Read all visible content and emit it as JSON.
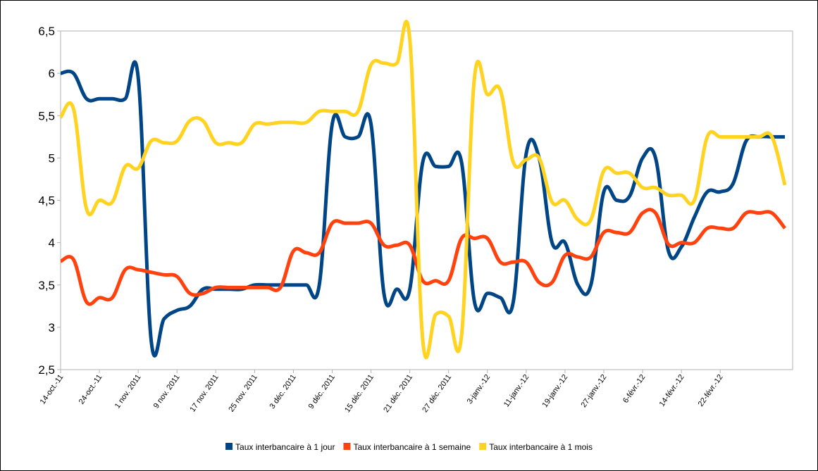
{
  "chart_data": {
    "type": "line",
    "categories": [
      "14-oct.-11",
      null,
      null,
      "24-oct.-11",
      null,
      null,
      "1 nov. 2011",
      null,
      null,
      "9 nov. 2011",
      null,
      null,
      "17 nov. 2011",
      null,
      null,
      "25 nov. 2011",
      null,
      null,
      "3 déc. 2011",
      null,
      null,
      "9 déc. 2011",
      null,
      null,
      "15 déc. 2011",
      null,
      null,
      "21 déc. 2011",
      null,
      null,
      "27 déc. 2011",
      null,
      null,
      "3-janv.-12",
      null,
      null,
      "11-janv.-12",
      null,
      null,
      "19-janv.-12",
      null,
      null,
      "27-janv.-12",
      null,
      null,
      "6-févr.-12",
      null,
      null,
      "14-févr.-12",
      null,
      null,
      "22-févr.-12",
      null,
      null,
      null,
      null,
      null
    ],
    "series": [
      {
        "name": "Taux interbancaire à 1 jour",
        "color": "#004586",
        "values": [
          6.0,
          6.0,
          5.7,
          5.7,
          5.7,
          5.7,
          5.95,
          2.85,
          3.1,
          3.2,
          3.25,
          3.45,
          3.45,
          3.45,
          3.45,
          3.5,
          3.5,
          3.5,
          3.5,
          3.5,
          3.5,
          5.4,
          5.25,
          5.25,
          5.4,
          3.4,
          3.45,
          3.45,
          4.95,
          4.9,
          4.9,
          4.95,
          3.3,
          3.4,
          3.35,
          3.3,
          5.05,
          5.0,
          4.0,
          4.0,
          3.5,
          3.5,
          4.6,
          4.5,
          4.55,
          5.0,
          5.0,
          3.9,
          3.95,
          4.3,
          4.6,
          4.6,
          4.7,
          5.2,
          5.25,
          5.25,
          5.25
        ]
      },
      {
        "name": "Taux interbancaire à 1 semaine",
        "color": "#ff420e",
        "values": [
          3.78,
          3.8,
          3.3,
          3.35,
          3.35,
          3.68,
          3.68,
          3.65,
          3.62,
          3.6,
          3.4,
          3.4,
          3.47,
          3.47,
          3.47,
          3.47,
          3.47,
          3.47,
          3.9,
          3.88,
          3.88,
          4.23,
          4.23,
          4.23,
          4.23,
          3.97,
          3.97,
          3.97,
          3.55,
          3.55,
          3.55,
          4.05,
          4.05,
          4.05,
          3.77,
          3.77,
          3.77,
          3.53,
          3.53,
          3.85,
          3.83,
          3.83,
          4.12,
          4.12,
          4.12,
          4.35,
          4.35,
          3.98,
          4.0,
          4.0,
          4.17,
          4.17,
          4.17,
          4.35,
          4.35,
          4.35,
          4.17
        ]
      },
      {
        "name": "Taux interbancaire à 1 mois",
        "color": "#ffd320",
        "values": [
          5.48,
          5.58,
          4.4,
          4.5,
          4.48,
          4.9,
          4.88,
          5.2,
          5.18,
          5.2,
          5.44,
          5.44,
          5.18,
          5.18,
          5.18,
          5.4,
          5.4,
          5.42,
          5.42,
          5.42,
          5.55,
          5.55,
          5.55,
          5.55,
          6.1,
          6.12,
          6.12,
          6.4,
          2.85,
          3.15,
          3.13,
          2.9,
          5.95,
          5.75,
          5.8,
          4.95,
          4.98,
          5.0,
          4.48,
          4.5,
          4.27,
          4.27,
          4.85,
          4.82,
          4.82,
          4.65,
          4.65,
          4.56,
          4.56,
          4.5,
          5.25,
          5.25,
          5.25,
          5.25,
          5.25,
          5.25,
          4.68
        ]
      }
    ],
    "ylim": [
      2.5,
      6.5
    ],
    "yticks": [
      {
        "value": 2.5,
        "label": "2,5"
      },
      3,
      {
        "value": 3.5,
        "label": "3,5"
      },
      4,
      {
        "value": 4.5,
        "label": "4,5"
      },
      5,
      {
        "value": 5.5,
        "label": "5,5"
      },
      6,
      {
        "value": 6.5,
        "label": "6,5"
      }
    ],
    "grid": false,
    "legend": "bottom"
  }
}
